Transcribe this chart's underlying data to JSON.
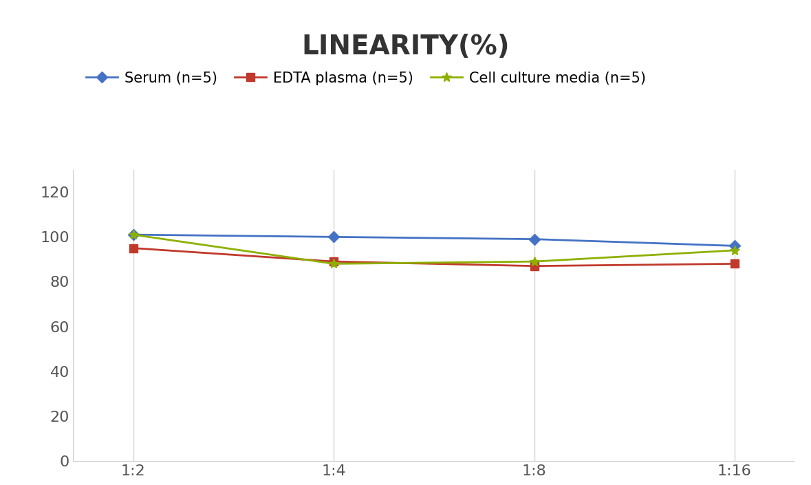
{
  "title": "LINEARITY(%)",
  "x_labels": [
    "1:2",
    "1:4",
    "1:8",
    "1:16"
  ],
  "x_positions": [
    0,
    1,
    2,
    3
  ],
  "series": [
    {
      "label": "Serum (n=5)",
      "values": [
        101,
        100,
        99,
        96
      ],
      "color": "#4472C4",
      "marker": "D",
      "markersize": 8,
      "linewidth": 2
    },
    {
      "label": "EDTA plasma (n=5)",
      "values": [
        95,
        89,
        87,
        88
      ],
      "color": "#C0392B",
      "marker": "s",
      "markersize": 8,
      "linewidth": 2
    },
    {
      "label": "Cell culture media (n=5)",
      "values": [
        101,
        88,
        89,
        94
      ],
      "color": "#8DB000",
      "marker": "*",
      "markersize": 10,
      "linewidth": 2
    }
  ],
  "ylim": [
    0,
    130
  ],
  "yticks": [
    0,
    20,
    40,
    60,
    80,
    100,
    120
  ],
  "background_color": "#ffffff",
  "title_fontsize": 28,
  "legend_fontsize": 15,
  "tick_fontsize": 16,
  "grid_color": "#d5d5d5"
}
